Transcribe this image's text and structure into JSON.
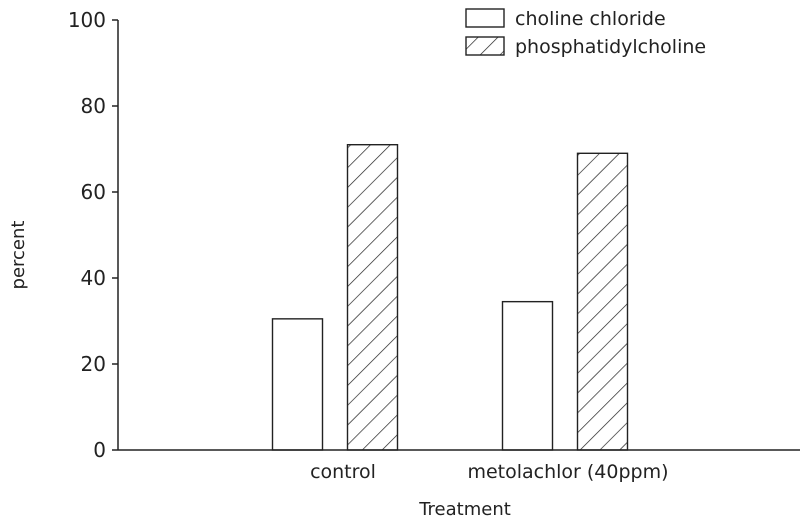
{
  "chart_data": {
    "type": "bar",
    "categories": [
      "control",
      "metolachlor (40ppm)"
    ],
    "series": [
      {
        "name": "choline chloride",
        "values": [
          30.5,
          34.5
        ],
        "pattern": "none"
      },
      {
        "name": "phosphatidylcholine",
        "values": [
          71,
          69
        ],
        "pattern": "hatch"
      }
    ],
    "title": "",
    "xlabel": "Treatment",
    "ylabel": "percent",
    "ylim": [
      0,
      100
    ],
    "yticks": [
      0,
      20,
      40,
      60,
      80,
      100
    ],
    "grid": false,
    "legend_position": "top-right",
    "colors": {
      "ink": "#222222",
      "background": "#ffffff"
    }
  }
}
